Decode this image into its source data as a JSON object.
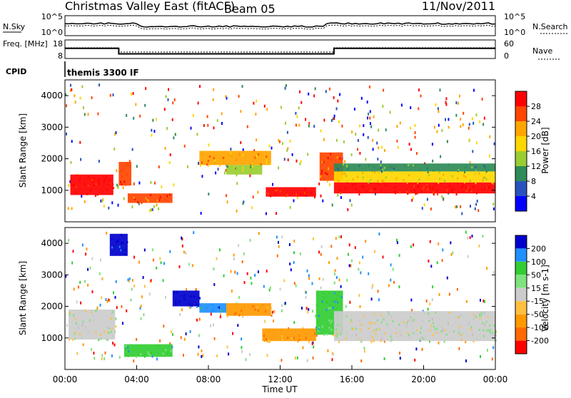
{
  "header": {
    "title": "Christmas Valley East (fitACF)",
    "beam": "Beam 05",
    "date": "11/Nov/2011"
  },
  "colors": {
    "power": [
      "#0000ff",
      "#2a52be",
      "#2e8b57",
      "#9acd32",
      "#ffd700",
      "#ffa500",
      "#ff4500",
      "#ff0000"
    ],
    "velocity": [
      "#0000cd",
      "#1e90ff",
      "#32cd32",
      "#7fe27f",
      "#cccccc",
      "#ffc040",
      "#ff9900",
      "#ff6a00",
      "#ff0000"
    ]
  },
  "chart_data": [
    {
      "type": "line",
      "name": "noise panel",
      "left_label": "N.Sky",
      "right_label": "N.Search",
      "left_ticks": [
        "10^5",
        "10^0"
      ],
      "right_ticks": [
        "10^5",
        "10^0"
      ]
    },
    {
      "type": "line",
      "name": "frequency panel",
      "left_label": "Freq. [MHz]",
      "right_label": "Nave",
      "left_ticks": [
        "18",
        "8"
      ],
      "right_ticks": [
        "60",
        "0"
      ],
      "freq_steps": [
        {
          "x_hours": 0,
          "value": 13.5
        },
        {
          "x_hours": 3,
          "value": 10.5
        },
        {
          "x_hours": 15,
          "value": 13.5
        },
        {
          "x_hours": 24,
          "value": 13.5
        }
      ]
    },
    {
      "type": "table",
      "label": "CPID",
      "value": "themis 3300 IF"
    },
    {
      "type": "heatmap",
      "name": "power",
      "ylabel": "Slant Range [km]",
      "ylim": [
        0,
        4500
      ],
      "yticks": [
        "1000",
        "2000",
        "3000",
        "4000"
      ],
      "colorbar_label": "Power [dB]",
      "colorbar_ticks": [
        "28",
        "24",
        "20",
        "16",
        "12",
        "8",
        "4"
      ],
      "bands": [
        {
          "x": [
            0.3,
            2.7
          ],
          "y": [
            850,
            1500
          ],
          "level": 7
        },
        {
          "x": [
            3.0,
            3.7
          ],
          "y": [
            1150,
            1900
          ],
          "level": 6
        },
        {
          "x": [
            3.5,
            6.0
          ],
          "y": [
            600,
            900
          ],
          "level": 6
        },
        {
          "x": [
            7.5,
            11.5
          ],
          "y": [
            1800,
            2250
          ],
          "level": 5
        },
        {
          "x": [
            9.0,
            11.0
          ],
          "y": [
            1500,
            1800
          ],
          "level": 3
        },
        {
          "x": [
            11.2,
            14.0
          ],
          "y": [
            800,
            1100
          ],
          "level": 7
        },
        {
          "x": [
            14.2,
            15.5
          ],
          "y": [
            1300,
            2200
          ],
          "level": 6
        },
        {
          "x": [
            15.0,
            24.0
          ],
          "y": [
            900,
            1250
          ],
          "level": 7
        },
        {
          "x": [
            15.0,
            24.0
          ],
          "y": [
            1250,
            1600
          ],
          "level": 4
        },
        {
          "x": [
            15.0,
            24.0
          ],
          "y": [
            1600,
            1850
          ],
          "level": 2
        }
      ]
    },
    {
      "type": "heatmap",
      "name": "velocity",
      "ylabel": "Slant Range [km]",
      "ylim": [
        0,
        4500
      ],
      "yticks": [
        "1000",
        "2000",
        "3000",
        "4000"
      ],
      "xlabel": "Time UT",
      "xticks": [
        "00:00",
        "04:00",
        "08:00",
        "12:00",
        "16:00",
        "20:00",
        "00:00"
      ],
      "colorbar_label": "Velocity [m s-1]",
      "colorbar_ticks": [
        "200",
        "100",
        "50",
        "15",
        "-15",
        "-50",
        "-100",
        "-200"
      ],
      "bands": [
        {
          "x": [
            0.2,
            2.8
          ],
          "y": [
            950,
            1900
          ],
          "level": 4
        },
        {
          "x": [
            2.5,
            3.5
          ],
          "y": [
            3600,
            4300
          ],
          "level": 0
        },
        {
          "x": [
            3.3,
            6.0
          ],
          "y": [
            400,
            800
          ],
          "level": 2
        },
        {
          "x": [
            6.0,
            7.5
          ],
          "y": [
            2000,
            2500
          ],
          "level": 0
        },
        {
          "x": [
            7.5,
            9.0
          ],
          "y": [
            1800,
            2100
          ],
          "level": 1
        },
        {
          "x": [
            9.0,
            11.5
          ],
          "y": [
            1700,
            2100
          ],
          "level": 6
        },
        {
          "x": [
            11.0,
            14.0
          ],
          "y": [
            900,
            1300
          ],
          "level": 6
        },
        {
          "x": [
            14.0,
            15.5
          ],
          "y": [
            1100,
            2500
          ],
          "level": 2
        },
        {
          "x": [
            15.0,
            24.0
          ],
          "y": [
            900,
            1850
          ],
          "level": 4
        }
      ]
    }
  ]
}
